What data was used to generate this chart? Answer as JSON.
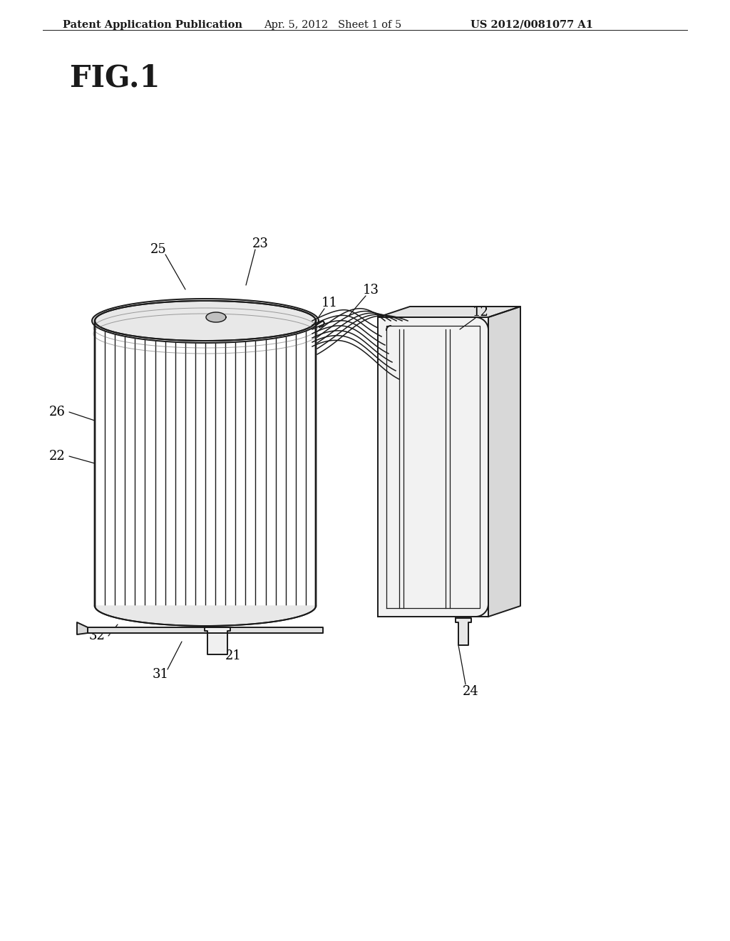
{
  "background_color": "#ffffff",
  "header_text": "Patent Application Publication",
  "header_date": "Apr. 5, 2012   Sheet 1 of 5",
  "header_patent": "US 2012/0081077 A1",
  "fig_label": "FIG.1",
  "header_fontsize": 10.5,
  "label_fontsize": 13,
  "line_color": "#1a1a1a",
  "line_width": 1.4
}
